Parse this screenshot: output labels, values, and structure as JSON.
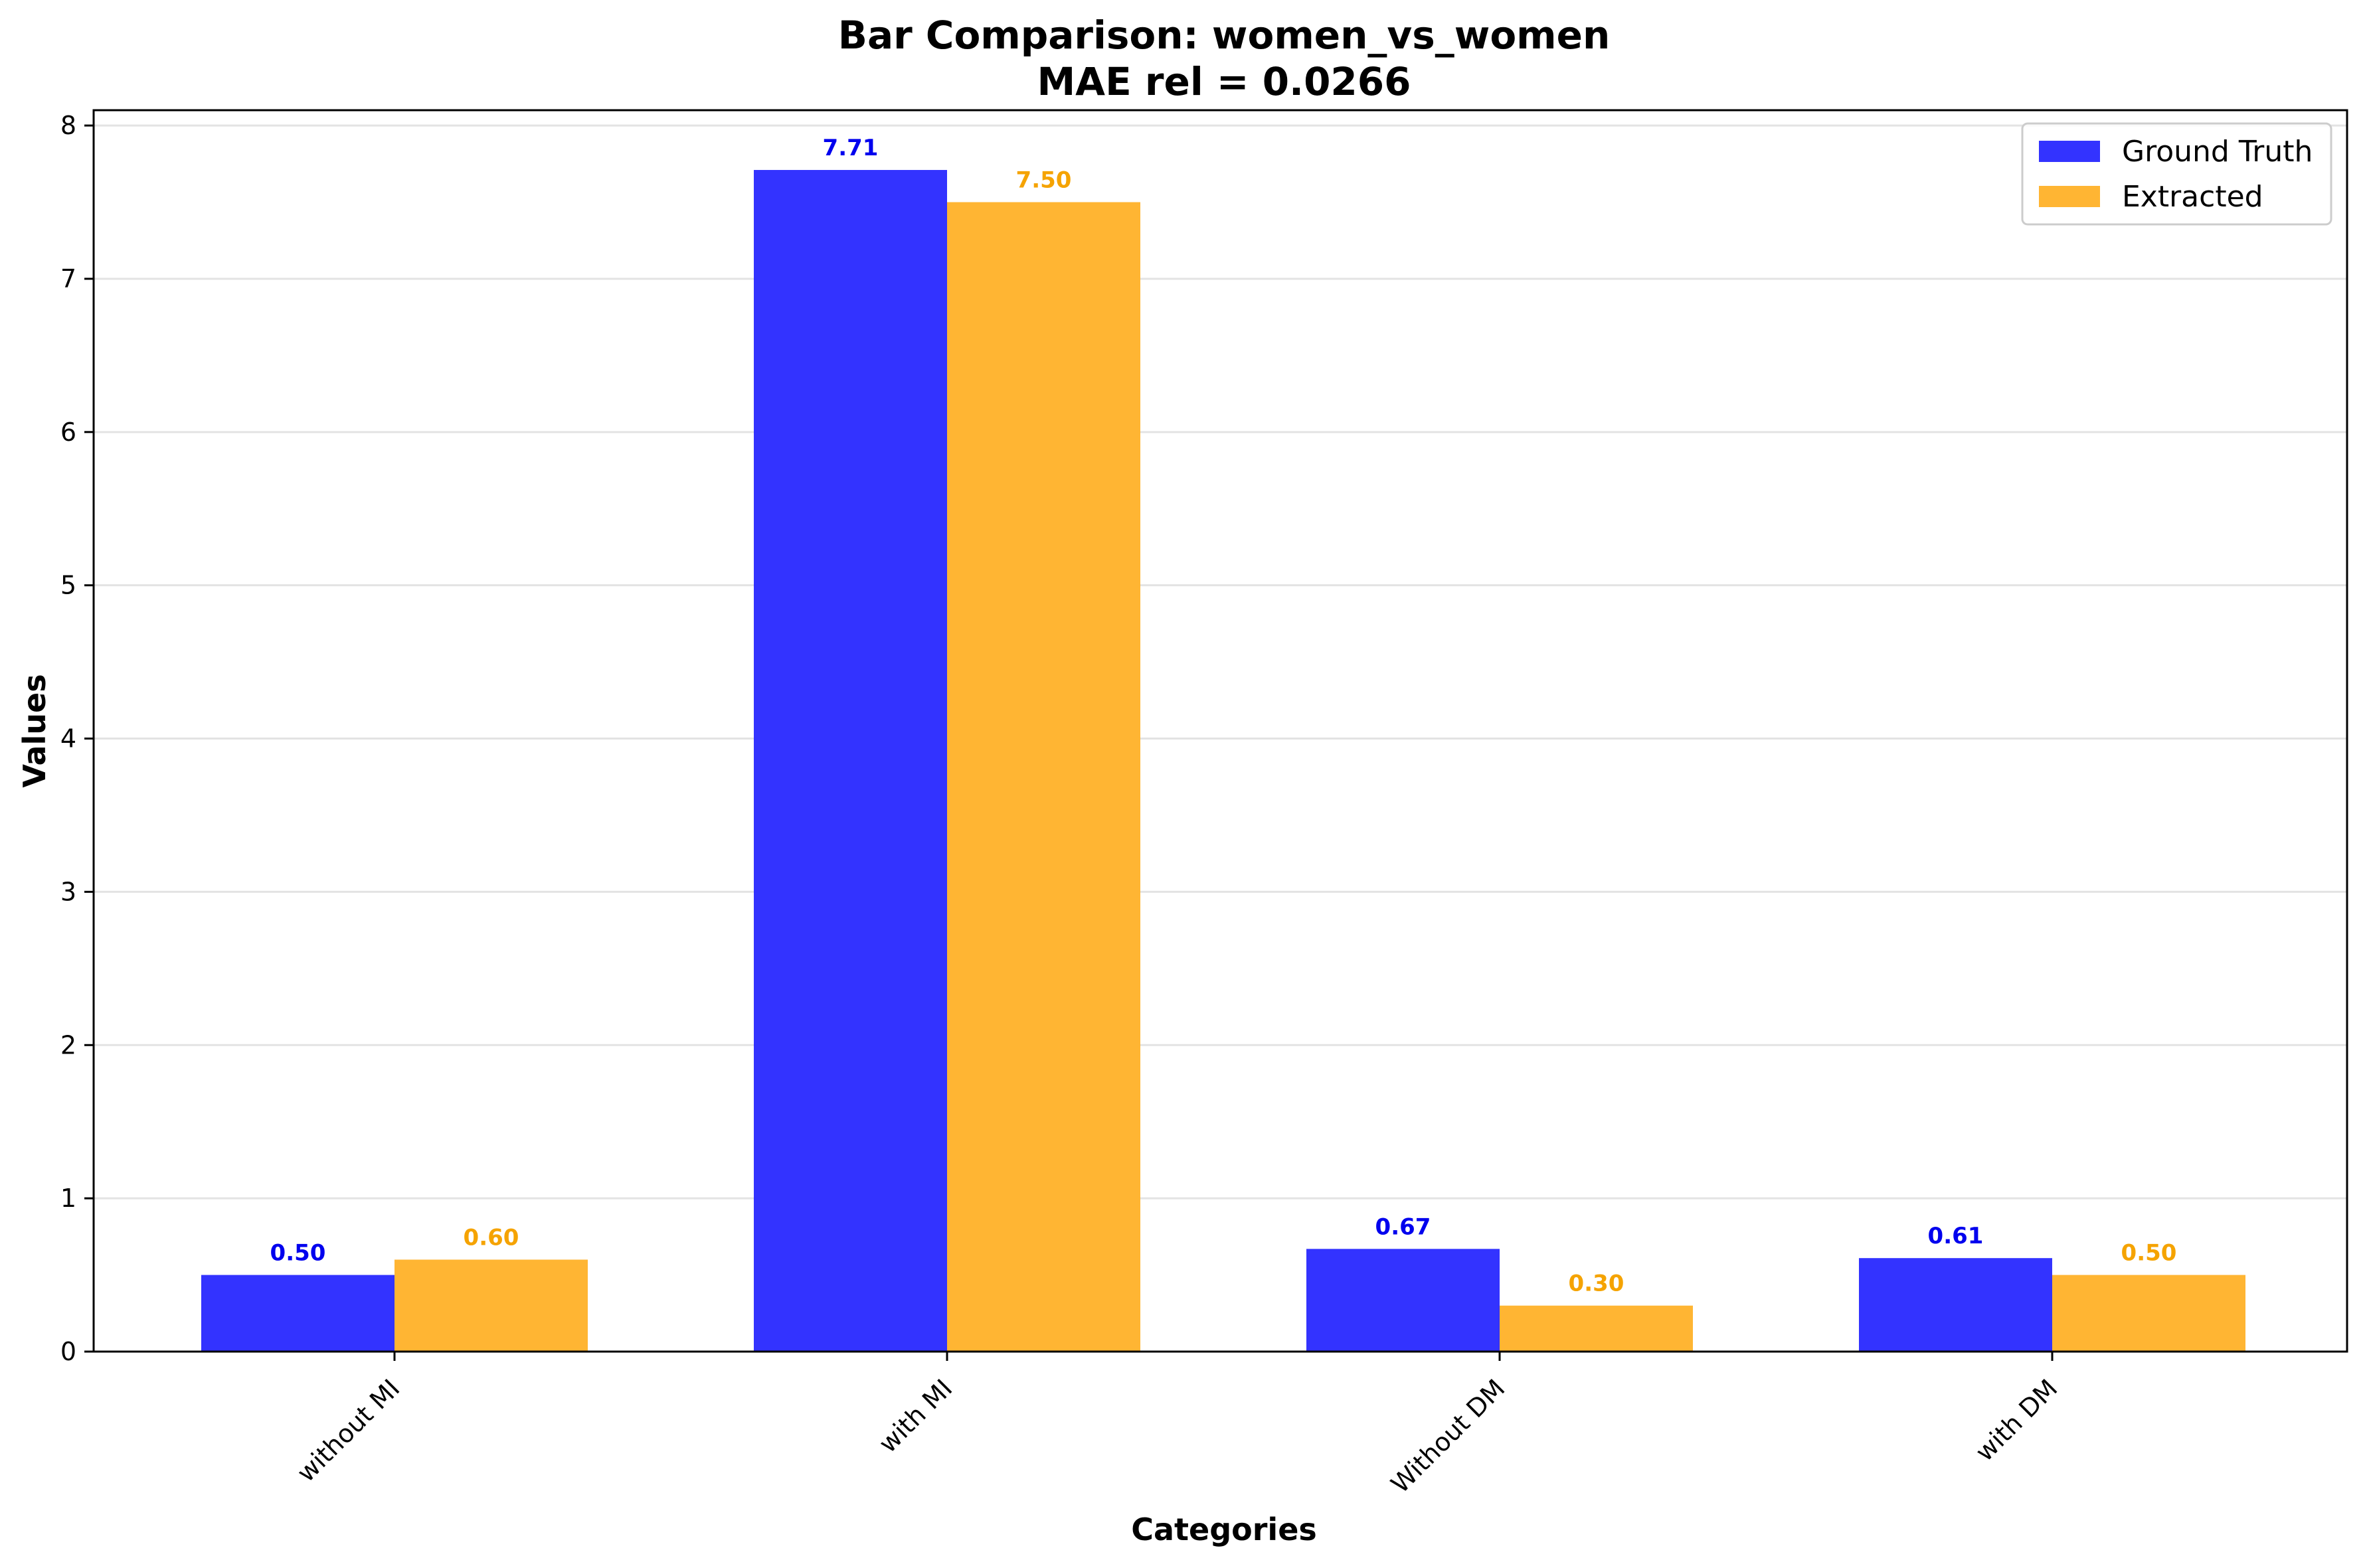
{
  "chart_data": {
    "type": "bar",
    "title": "Bar Comparison: women_vs_women",
    "subtitle": "MAE rel = 0.0266",
    "xlabel": "Categories",
    "ylabel": "Values",
    "categories": [
      "without MI",
      "with MI",
      "Without DM",
      "with DM"
    ],
    "series": [
      {
        "name": "Ground Truth",
        "color": "#3333ff",
        "label_color": "#0000ee",
        "values": [
          0.5,
          7.71,
          0.67,
          0.61
        ],
        "labels": [
          "0.50",
          "7.71",
          "0.67",
          "0.61"
        ]
      },
      {
        "name": "Extracted",
        "color": "#ffb533",
        "label_color": "#f5a300",
        "values": [
          0.6,
          7.5,
          0.3,
          0.5
        ],
        "labels": [
          "0.60",
          "7.50",
          "0.30",
          "0.50"
        ]
      }
    ],
    "ylim": [
      0,
      8.1
    ],
    "yticks": [
      0,
      1,
      2,
      3,
      4,
      5,
      6,
      7,
      8
    ],
    "grid": "horizontal",
    "legend_position": "top-right"
  }
}
